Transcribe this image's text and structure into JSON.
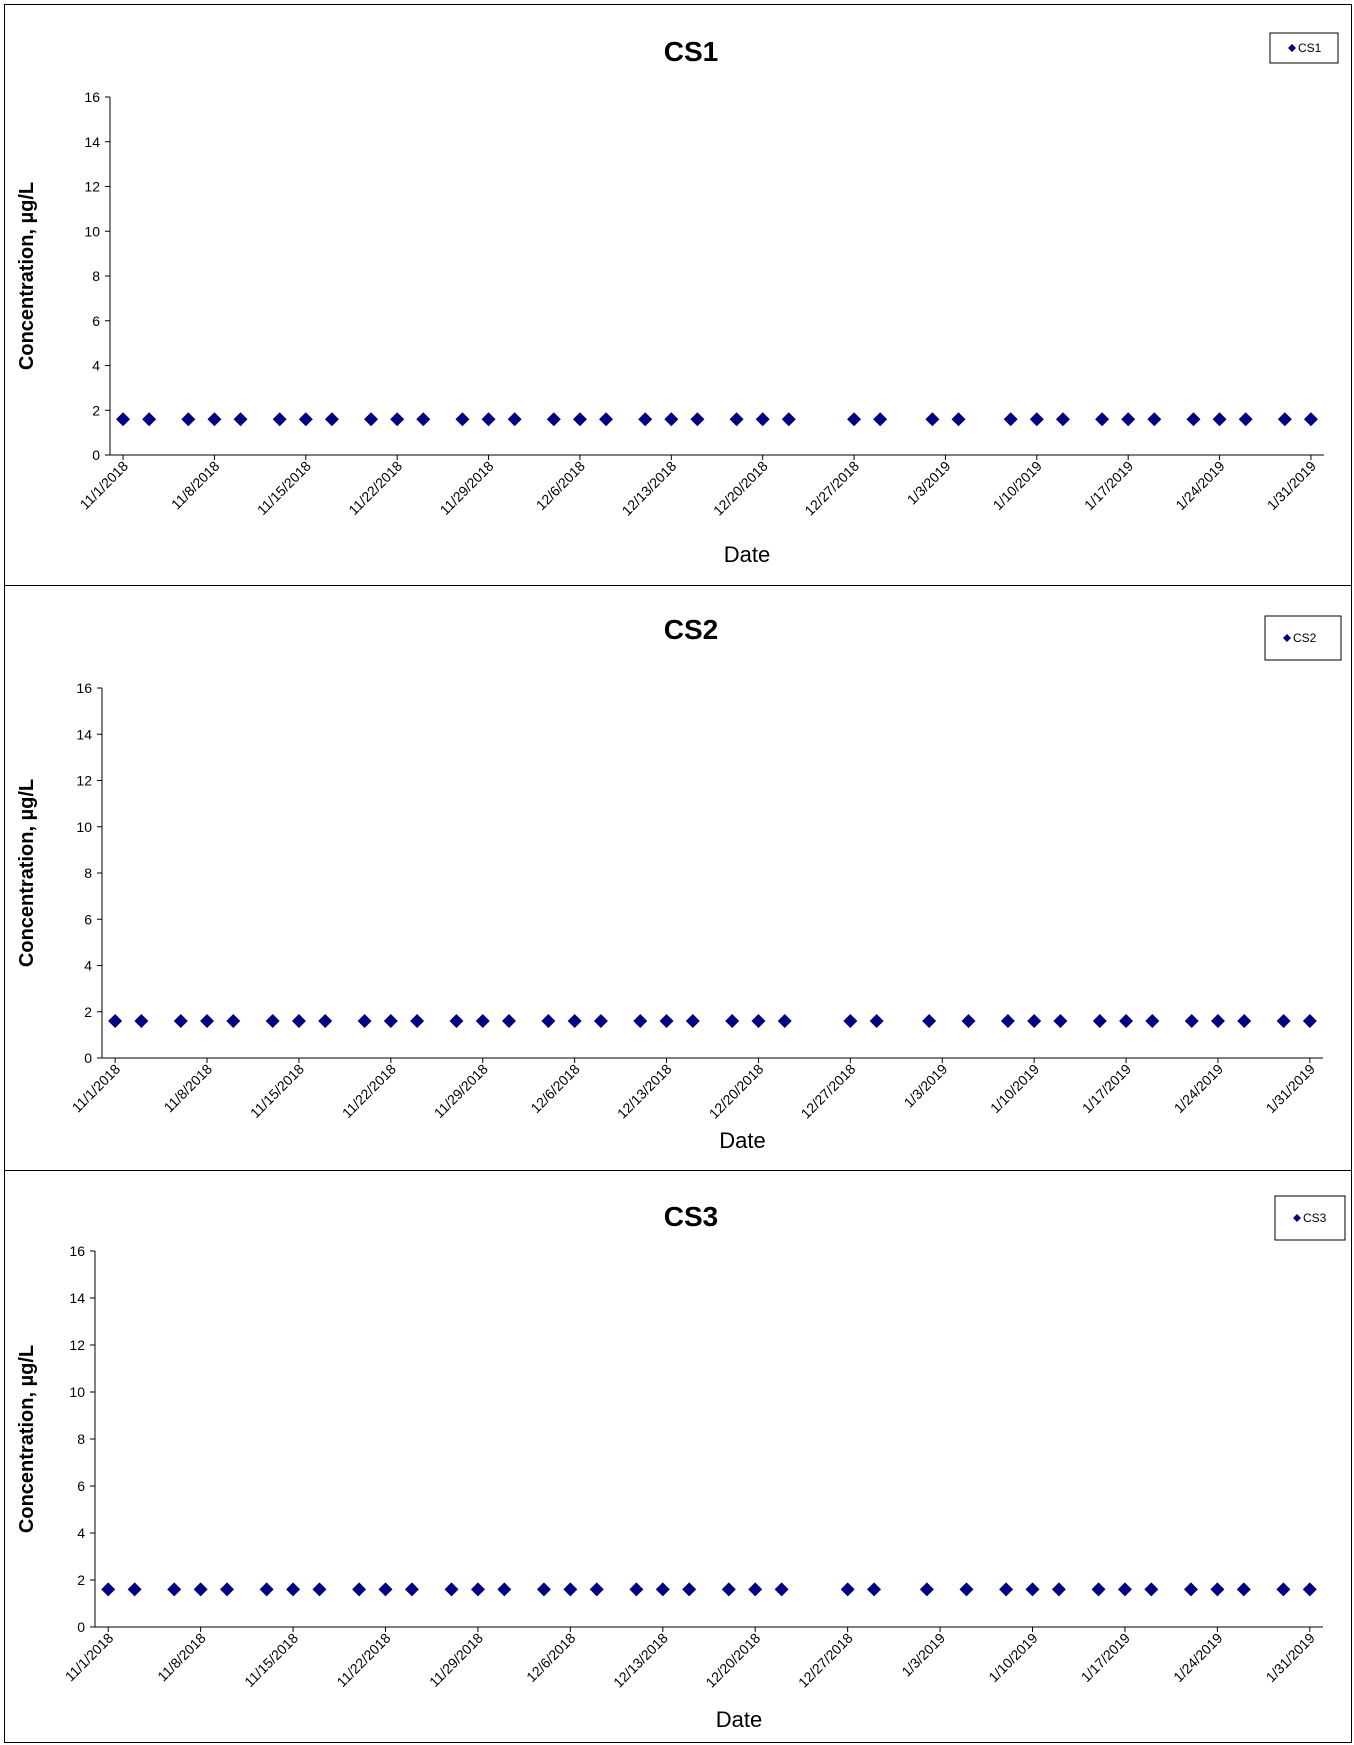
{
  "marker_color": "#000080",
  "chart_data": [
    {
      "type": "scatter",
      "title": "CS1",
      "xlabel": "Date",
      "ylabel": "Concentration, µg/L",
      "ylim": [
        0,
        16
      ],
      "yticks": [
        "0",
        "2",
        "4",
        "6",
        "8",
        "10",
        "12",
        "14",
        "16"
      ],
      "xlim": [
        "10/31/2018",
        "2/1/2019"
      ],
      "xtick_labels": [
        "11/1/2018",
        "11/8/2018",
        "11/15/2018",
        "11/22/2018",
        "11/29/2018",
        "12/6/2018",
        "12/13/2018",
        "12/20/2018",
        "12/27/2018",
        "1/3/2019",
        "1/10/2019",
        "1/17/2019",
        "1/24/2019",
        "1/31/2019"
      ],
      "legend": {
        "position": "top-right",
        "entries": [
          "CS1"
        ]
      },
      "grid": false,
      "series": [
        {
          "name": "CS1",
          "x": [
            "11/1/2018",
            "11/3/2018",
            "11/6/2018",
            "11/8/2018",
            "11/10/2018",
            "11/13/2018",
            "11/15/2018",
            "11/17/2018",
            "11/20/2018",
            "11/22/2018",
            "11/24/2018",
            "11/27/2018",
            "11/29/2018",
            "12/1/2018",
            "12/4/2018",
            "12/6/2018",
            "12/8/2018",
            "12/11/2018",
            "12/13/2018",
            "12/15/2018",
            "12/18/2018",
            "12/20/2018",
            "12/22/2018",
            "12/27/2018",
            "12/29/2018",
            "1/2/2019",
            "1/4/2019",
            "1/8/2019",
            "1/10/2019",
            "1/12/2019",
            "1/15/2019",
            "1/17/2019",
            "1/19/2019",
            "1/22/2019",
            "1/24/2019",
            "1/26/2019",
            "1/29/2019",
            "1/31/2019"
          ],
          "y": [
            1.6,
            1.6,
            1.6,
            1.6,
            1.6,
            1.6,
            1.6,
            1.6,
            1.6,
            1.6,
            1.6,
            1.6,
            1.6,
            1.6,
            1.6,
            1.6,
            1.6,
            1.6,
            1.6,
            1.6,
            1.6,
            1.6,
            1.6,
            1.6,
            1.6,
            1.6,
            1.6,
            1.6,
            1.6,
            1.6,
            1.6,
            1.6,
            1.6,
            1.6,
            1.6,
            1.6,
            1.6,
            1.6
          ]
        }
      ]
    },
    {
      "type": "scatter",
      "title": "CS2",
      "xlabel": "Date",
      "ylabel": "Concentration, µg/L",
      "ylim": [
        0,
        16
      ],
      "yticks": [
        "0",
        "2",
        "4",
        "6",
        "8",
        "10",
        "12",
        "14",
        "16"
      ],
      "xlim": [
        "10/31/2018",
        "2/1/2019"
      ],
      "xtick_labels": [
        "11/1/2018",
        "11/8/2018",
        "11/15/2018",
        "11/22/2018",
        "11/29/2018",
        "12/6/2018",
        "12/13/2018",
        "12/20/2018",
        "12/27/2018",
        "1/3/2019",
        "1/10/2019",
        "1/17/2019",
        "1/24/2019",
        "1/31/2019"
      ],
      "legend": {
        "position": "top-right",
        "entries": [
          "CS2"
        ]
      },
      "grid": false,
      "series": [
        {
          "name": "CS2",
          "x": [
            "11/1/2018",
            "11/3/2018",
            "11/6/2018",
            "11/8/2018",
            "11/10/2018",
            "11/13/2018",
            "11/15/2018",
            "11/17/2018",
            "11/20/2018",
            "11/22/2018",
            "11/24/2018",
            "11/27/2018",
            "11/29/2018",
            "12/1/2018",
            "12/4/2018",
            "12/6/2018",
            "12/8/2018",
            "12/11/2018",
            "12/13/2018",
            "12/15/2018",
            "12/18/2018",
            "12/20/2018",
            "12/22/2018",
            "12/27/2018",
            "12/29/2018",
            "1/2/2019",
            "1/5/2019",
            "1/8/2019",
            "1/10/2019",
            "1/12/2019",
            "1/15/2019",
            "1/17/2019",
            "1/19/2019",
            "1/22/2019",
            "1/24/2019",
            "1/26/2019",
            "1/29/2019",
            "1/31/2019"
          ],
          "y": [
            1.6,
            1.6,
            1.6,
            1.6,
            1.6,
            1.6,
            1.6,
            1.6,
            1.6,
            1.6,
            1.6,
            1.6,
            1.6,
            1.6,
            1.6,
            1.6,
            1.6,
            1.6,
            1.6,
            1.6,
            1.6,
            1.6,
            1.6,
            1.6,
            1.6,
            1.6,
            1.6,
            1.6,
            1.6,
            1.6,
            1.6,
            1.6,
            1.6,
            1.6,
            1.6,
            1.6,
            1.6,
            1.6
          ]
        }
      ]
    },
    {
      "type": "scatter",
      "title": "CS3",
      "xlabel": "Date",
      "ylabel": "Concentration, µg/L",
      "ylim": [
        0,
        16
      ],
      "yticks": [
        "0",
        "2",
        "4",
        "6",
        "8",
        "10",
        "12",
        "14",
        "16"
      ],
      "xlim": [
        "10/31/2018",
        "2/1/2019"
      ],
      "xtick_labels": [
        "11/1/2018",
        "11/8/2018",
        "11/15/2018",
        "11/22/2018",
        "11/29/2018",
        "12/6/2018",
        "12/13/2018",
        "12/20/2018",
        "12/27/2018",
        "1/3/2019",
        "1/10/2019",
        "1/17/2019",
        "1/24/2019",
        "1/31/2019"
      ],
      "legend": {
        "position": "top-right",
        "entries": [
          "CS3"
        ]
      },
      "grid": false,
      "series": [
        {
          "name": "CS3",
          "x": [
            "11/1/2018",
            "11/3/2018",
            "11/6/2018",
            "11/8/2018",
            "11/10/2018",
            "11/13/2018",
            "11/15/2018",
            "11/17/2018",
            "11/20/2018",
            "11/22/2018",
            "11/24/2018",
            "11/27/2018",
            "11/29/2018",
            "12/1/2018",
            "12/4/2018",
            "12/6/2018",
            "12/8/2018",
            "12/11/2018",
            "12/13/2018",
            "12/15/2018",
            "12/18/2018",
            "12/20/2018",
            "12/22/2018",
            "12/27/2018",
            "12/29/2018",
            "1/2/2019",
            "1/5/2019",
            "1/8/2019",
            "1/10/2019",
            "1/12/2019",
            "1/15/2019",
            "1/17/2019",
            "1/19/2019",
            "1/22/2019",
            "1/24/2019",
            "1/26/2019",
            "1/29/2019",
            "1/31/2019"
          ],
          "y": [
            1.6,
            1.6,
            1.6,
            1.6,
            1.6,
            1.6,
            1.6,
            1.6,
            1.6,
            1.6,
            1.6,
            1.6,
            1.6,
            1.6,
            1.6,
            1.6,
            1.6,
            1.6,
            1.6,
            1.6,
            1.6,
            1.6,
            1.6,
            1.6,
            1.6,
            1.6,
            1.6,
            1.6,
            1.6,
            1.6,
            1.6,
            1.6,
            1.6,
            1.6,
            1.6,
            1.6,
            1.6,
            1.6
          ]
        }
      ]
    }
  ]
}
